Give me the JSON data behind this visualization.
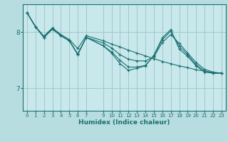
{
  "xlabel": "Humidex (Indice chaleur)",
  "bg_color": "#b8dde0",
  "plot_bg_color": "#c8e8ec",
  "line_color": "#1a7070",
  "grid_color": "#a0c8cc",
  "ylim": [
    6.6,
    8.5
  ],
  "xlim": [
    -0.5,
    23.5
  ],
  "yticks": [
    7,
    8
  ],
  "xticks": [
    0,
    1,
    2,
    3,
    4,
    5,
    6,
    7,
    9,
    10,
    11,
    12,
    13,
    14,
    15,
    16,
    17,
    18,
    19,
    20,
    21,
    22,
    23
  ],
  "series": [
    {
      "x": [
        0,
        1,
        2,
        3,
        4,
        5,
        6,
        7,
        9,
        10,
        11,
        12,
        13,
        14,
        15,
        16,
        17,
        18,
        19,
        20,
        21,
        22,
        23
      ],
      "y": [
        8.35,
        8.1,
        7.93,
        8.08,
        7.96,
        7.87,
        7.71,
        7.94,
        7.85,
        7.79,
        7.74,
        7.68,
        7.63,
        7.58,
        7.53,
        7.48,
        7.44,
        7.4,
        7.37,
        7.33,
        7.31,
        7.28,
        7.27
      ]
    },
    {
      "x": [
        0,
        1,
        2,
        3,
        4,
        5,
        6,
        7,
        9,
        10,
        11,
        12,
        13,
        14,
        15,
        16,
        17,
        18,
        19,
        20,
        21,
        22,
        23
      ],
      "y": [
        8.35,
        8.1,
        7.91,
        8.06,
        7.94,
        7.85,
        7.6,
        7.91,
        7.81,
        7.72,
        7.6,
        7.52,
        7.49,
        7.49,
        7.56,
        7.82,
        7.96,
        7.8,
        7.63,
        7.46,
        7.34,
        7.29,
        7.27
      ]
    },
    {
      "x": [
        0,
        1,
        2,
        3,
        4,
        5,
        6,
        7,
        9,
        10,
        11,
        12,
        13,
        14,
        15,
        16,
        17,
        18,
        19,
        20,
        21,
        22,
        23
      ],
      "y": [
        8.35,
        8.1,
        7.91,
        8.06,
        7.94,
        7.85,
        7.61,
        7.91,
        7.76,
        7.65,
        7.5,
        7.38,
        7.38,
        7.41,
        7.58,
        7.87,
        8.02,
        7.75,
        7.6,
        7.42,
        7.31,
        7.27,
        7.27
      ]
    },
    {
      "x": [
        0,
        1,
        2,
        3,
        4,
        5,
        6,
        7,
        9,
        10,
        11,
        12,
        13,
        14,
        15,
        16,
        17,
        18,
        19,
        20,
        21,
        22,
        23
      ],
      "y": [
        8.35,
        8.1,
        7.91,
        8.06,
        7.94,
        7.85,
        7.61,
        7.91,
        7.76,
        7.63,
        7.44,
        7.32,
        7.36,
        7.4,
        7.59,
        7.9,
        8.05,
        7.7,
        7.57,
        7.4,
        7.29,
        7.27,
        7.27
      ]
    }
  ]
}
